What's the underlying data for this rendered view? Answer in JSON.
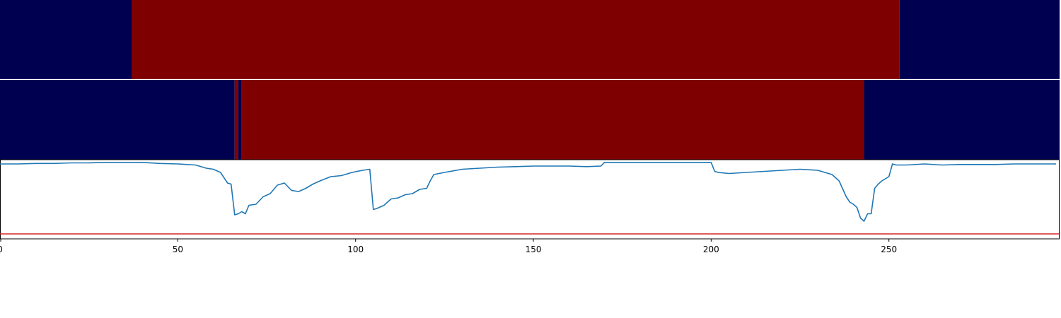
{
  "colors": {
    "state_low": "#000050",
    "state_high": "#7f0000",
    "signal_line": "#1f77b4",
    "threshold_line": "#d62728",
    "separator": "#ffffff",
    "axis": "#000000"
  },
  "chart_data": [
    {
      "type": "heatmap",
      "panel": "top-strip",
      "xlim": [
        0,
        298
      ],
      "segments": [
        {
          "start": 0,
          "end": 37,
          "state": 0
        },
        {
          "start": 37,
          "end": 253,
          "state": 1
        },
        {
          "start": 253,
          "end": 298,
          "state": 0
        }
      ]
    },
    {
      "type": "heatmap",
      "panel": "middle-strip",
      "xlim": [
        0,
        298
      ],
      "segments": [
        {
          "start": 0,
          "end": 66,
          "state": 0
        },
        {
          "start": 66,
          "end": 67,
          "state": 1
        },
        {
          "start": 67,
          "end": 68,
          "state": 0
        },
        {
          "start": 68,
          "end": 243,
          "state": 1
        },
        {
          "start": 243,
          "end": 298,
          "state": 0
        }
      ]
    },
    {
      "type": "line",
      "panel": "bottom-plot",
      "xlim": [
        0,
        298
      ],
      "ylim": [
        0,
        1
      ],
      "grid": false,
      "xticks": [
        0,
        50,
        100,
        150,
        200,
        250
      ],
      "xtick_labels": [
        "0",
        "50",
        "100",
        "150",
        "200",
        "250"
      ],
      "threshold": 0.3,
      "x": [
        0,
        5,
        10,
        15,
        20,
        25,
        30,
        35,
        40,
        45,
        50,
        55,
        58,
        60,
        62,
        64,
        65,
        66,
        67,
        68,
        69,
        70,
        72,
        74,
        76,
        78,
        80,
        82,
        84,
        86,
        88,
        90,
        93,
        96,
        99,
        102,
        104,
        105,
        106,
        108,
        110,
        112,
        114,
        116,
        118,
        120,
        121,
        122,
        125,
        130,
        135,
        140,
        145,
        150,
        155,
        160,
        165,
        169,
        170,
        180,
        190,
        200,
        201,
        202,
        205,
        210,
        215,
        220,
        225,
        230,
        234,
        236,
        238,
        239,
        240,
        241,
        242,
        243,
        244,
        245,
        246,
        247,
        248,
        250,
        251,
        252,
        255,
        260,
        265,
        270,
        275,
        280,
        285,
        290,
        297
      ],
      "y": [
        0.96,
        0.96,
        0.965,
        0.965,
        0.97,
        0.97,
        0.975,
        0.975,
        0.975,
        0.965,
        0.96,
        0.95,
        0.92,
        0.91,
        0.88,
        0.78,
        0.77,
        0.48,
        0.49,
        0.51,
        0.49,
        0.57,
        0.58,
        0.65,
        0.68,
        0.76,
        0.78,
        0.71,
        0.7,
        0.73,
        0.77,
        0.8,
        0.84,
        0.85,
        0.88,
        0.9,
        0.91,
        0.53,
        0.54,
        0.57,
        0.63,
        0.64,
        0.67,
        0.68,
        0.72,
        0.73,
        0.8,
        0.86,
        0.88,
        0.91,
        0.92,
        0.93,
        0.935,
        0.94,
        0.94,
        0.94,
        0.935,
        0.94,
        0.975,
        0.975,
        0.975,
        0.975,
        0.89,
        0.88,
        0.87,
        0.88,
        0.89,
        0.9,
        0.91,
        0.9,
        0.86,
        0.8,
        0.65,
        0.6,
        0.58,
        0.55,
        0.45,
        0.42,
        0.49,
        0.49,
        0.73,
        0.77,
        0.8,
        0.84,
        0.96,
        0.95,
        0.95,
        0.96,
        0.95,
        0.955,
        0.955,
        0.955,
        0.96,
        0.96,
        0.96
      ]
    }
  ]
}
